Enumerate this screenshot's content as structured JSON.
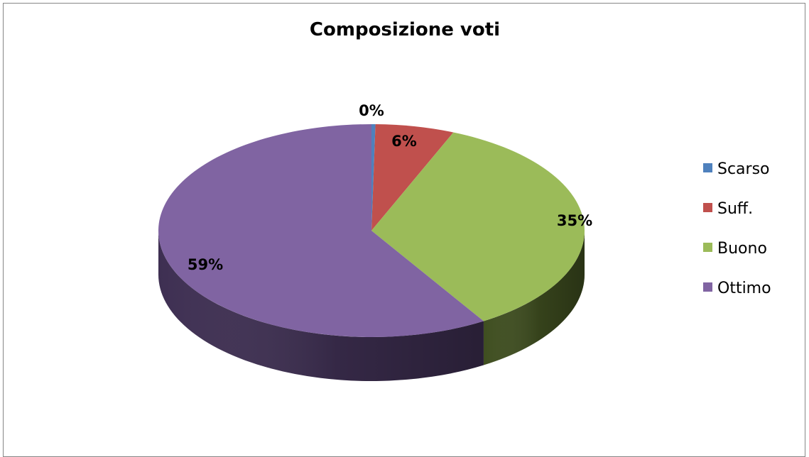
{
  "chart_data": {
    "type": "pie",
    "title": "Composizione voti",
    "categories": [
      "Scarso",
      "Suff.",
      "Buono",
      "Ottimo"
    ],
    "values": [
      0.3,
      6,
      35,
      59
    ],
    "data_labels": [
      "0%",
      "6%",
      "35%",
      "59%"
    ],
    "colors": [
      "#4F81BD",
      "#C0504D",
      "#9BBB59",
      "#8064A2"
    ],
    "side_colors": [
      "#2E4B73",
      "#7A2F2D",
      "#3F4E20",
      "#3E2F52"
    ],
    "style": "3d-pie",
    "legend_position": "right"
  }
}
